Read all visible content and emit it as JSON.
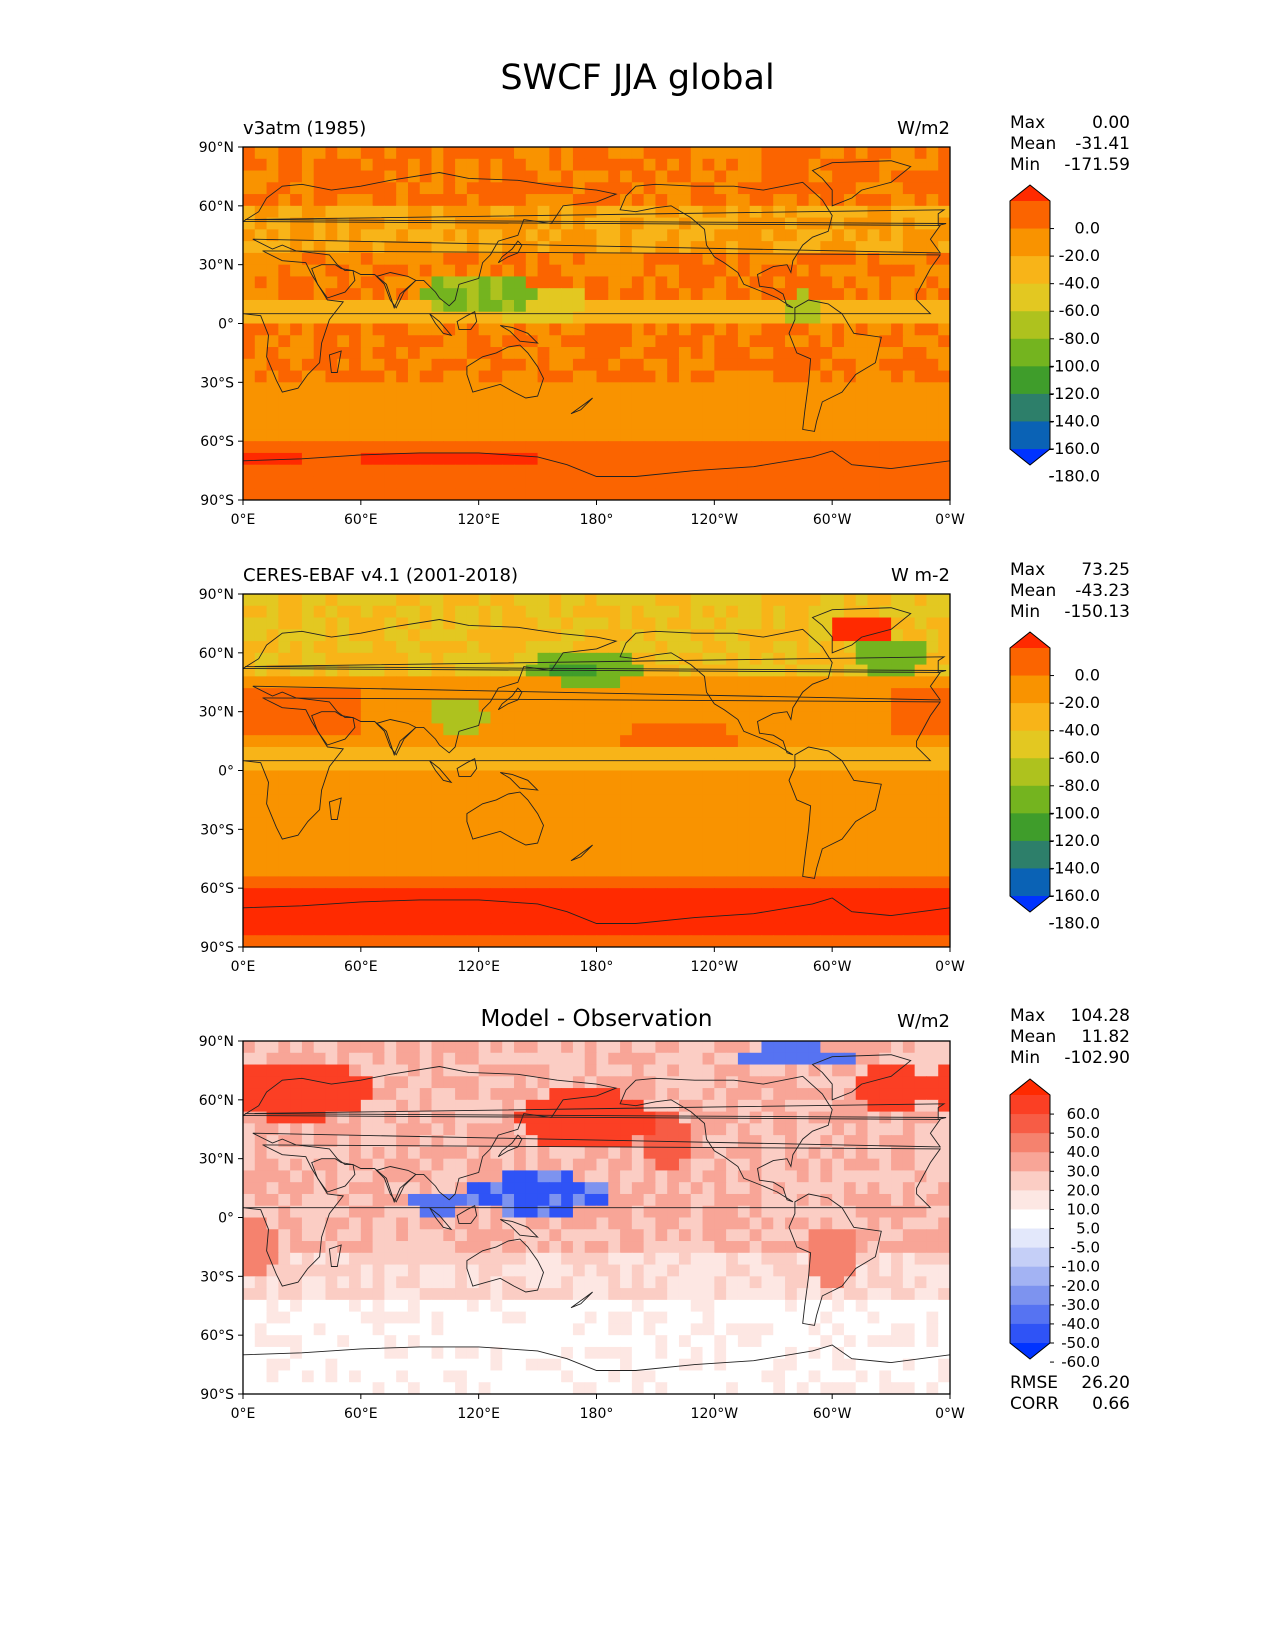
{
  "title": "SWCF JJA global",
  "x_ticks": [
    "0°E",
    "60°E",
    "120°E",
    "180°",
    "120°W",
    "60°W",
    "0°W"
  ],
  "y_ticks": [
    "90°N",
    "60°N",
    "30°N",
    "0°",
    "30°S",
    "60°S",
    "90°S"
  ],
  "panels": [
    {
      "left_title": "v3atm (1985)",
      "right_title": "W/m2",
      "center_title": "",
      "stats": [
        {
          "label": "Max",
          "value": "0.00"
        },
        {
          "label": "Mean",
          "value": "-31.41"
        },
        {
          "label": "Min",
          "value": "-171.59"
        }
      ],
      "colorbar": {
        "labels": [
          "0.0",
          "-20.0",
          "-40.0",
          "-60.0",
          "-80.0",
          "-100.0",
          "-120.0",
          "-140.0",
          "-160.0",
          "-180.0"
        ],
        "colors": [
          "#ff2a00",
          "#fb6400",
          "#f99300",
          "#f8b418",
          "#e3c821",
          "#aec21e",
          "#74b41f",
          "#3f9d2b",
          "#2d7f6a",
          "#0a62b5",
          "#0033ff"
        ]
      }
    },
    {
      "left_title": "CERES-EBAF v4.1 (2001-2018)",
      "right_title": "W m-2",
      "center_title": "",
      "stats": [
        {
          "label": "Max",
          "value": "73.25"
        },
        {
          "label": "Mean",
          "value": "-43.23"
        },
        {
          "label": "Min",
          "value": "-150.13"
        }
      ],
      "colorbar": {
        "labels": [
          "0.0",
          "-20.0",
          "-40.0",
          "-60.0",
          "-80.0",
          "-100.0",
          "-120.0",
          "-140.0",
          "-160.0",
          "-180.0"
        ],
        "colors": [
          "#ff2a00",
          "#fb6400",
          "#f99300",
          "#f8b418",
          "#e3c821",
          "#aec21e",
          "#74b41f",
          "#3f9d2b",
          "#2d7f6a",
          "#0a62b5",
          "#0033ff"
        ]
      }
    },
    {
      "left_title": "",
      "right_title": "W/m2",
      "center_title": "Model - Observation",
      "stats": [
        {
          "label": "Max",
          "value": "104.28"
        },
        {
          "label": "Mean",
          "value": "11.82"
        },
        {
          "label": "Min",
          "value": "-102.90"
        }
      ],
      "extra_stats": [
        {
          "label": "RMSE",
          "value": "26.20"
        },
        {
          "label": "CORR",
          "value": "0.66"
        }
      ],
      "colorbar": {
        "labels": [
          "60.0",
          "50.0",
          "40.0",
          "30.0",
          "20.0",
          "10.0",
          "5.0",
          "-5.0",
          "-10.0",
          "-20.0",
          "-30.0",
          "-40.0",
          "-50.0",
          "-60.0"
        ],
        "colors": [
          "#ff2a00",
          "#fb3f24",
          "#f75c45",
          "#f5826e",
          "#f8a597",
          "#fbcdc4",
          "#fde7e3",
          "#ffffff",
          "#e3e8fb",
          "#c5cff7",
          "#a3b3f3",
          "#7d93ef",
          "#5673f2",
          "#2f53f6",
          "#0033ff"
        ]
      }
    }
  ],
  "chart_data": {
    "type": "heatmap",
    "title": "SWCF JJA global",
    "panels": [
      {
        "name": "v3atm (1985)",
        "units": "W/m2",
        "max": 0.0,
        "mean": -31.41,
        "min": -171.59
      },
      {
        "name": "CERES-EBAF v4.1 (2001-2018)",
        "units": "W m-2",
        "max": 73.25,
        "mean": -43.23,
        "min": -150.13
      },
      {
        "name": "Model - Observation",
        "units": "W/m2",
        "max": 104.28,
        "mean": 11.82,
        "min": -102.9,
        "rmse": 26.2,
        "corr": 0.66
      }
    ],
    "xlim": [
      0,
      360
    ],
    "ylim": [
      -90,
      90
    ]
  }
}
